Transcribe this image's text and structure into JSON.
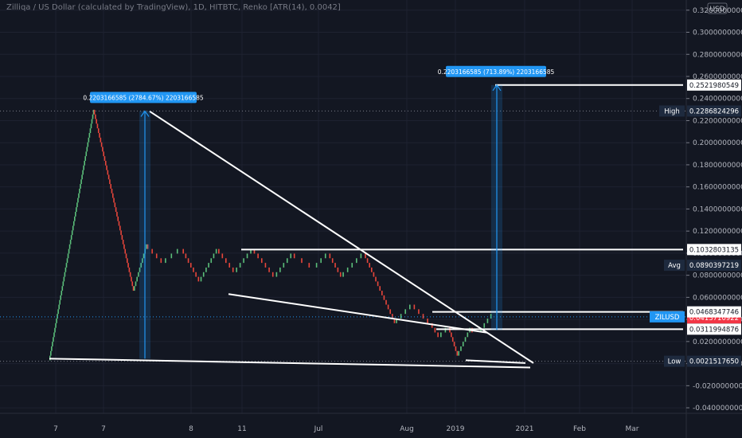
{
  "header": {
    "title": "Zilliqa / US Dollar (calculated by TradingView), 1D, HITBTC, Renko [ATR(14), 0.0042]"
  },
  "currency_badge": "USD",
  "colors": {
    "background": "#131722",
    "grid": "#1e2230",
    "up": "#26a69a",
    "down": "#ef5350",
    "up_brick": "#5bbf7a",
    "down_brick": "#e8463b",
    "trendline": "#ffffff",
    "measure": "#2196f3",
    "tag_dark": "#1e2a3e",
    "tag_blue": "#2196f3",
    "tag_red": "#f23645",
    "axis_text": "#b2b5be"
  },
  "chart_data": {
    "type": "renko",
    "title": "Zilliqa / US Dollar (calculated by TradingView), 1D, HITBTC, Renko [ATR(14), 0.0042]",
    "ylim": [
      -0.045,
      0.322
    ],
    "y_ticks": [
      "0.3200000000",
      "0.3000000000",
      "0.2800000000",
      "0.2600000000",
      "0.2400000000",
      "0.2200000000",
      "0.2000000000",
      "0.1800000000",
      "0.1600000000",
      "0.1400000000",
      "0.1200000000",
      "0.1000000000",
      "0.0800000000",
      "0.0600000000",
      "0.0400000000",
      "0.0200000000",
      "0.0000000000",
      "-0.0200000000",
      "-0.0400000000"
    ],
    "y_tick_values": [
      0.32,
      0.3,
      0.28,
      0.26,
      0.24,
      0.22,
      0.2,
      0.18,
      0.16,
      0.14,
      0.12,
      0.1,
      0.08,
      0.06,
      0.04,
      0.02,
      0.0,
      -0.02,
      -0.04
    ],
    "x_ticks": [
      "7",
      "7",
      "8",
      "11",
      "Jul",
      "Aug",
      "2019",
      "2021",
      "Feb",
      "Mar"
    ],
    "price_path": [
      {
        "x": 0.0,
        "y": 0.003
      },
      {
        "x": 0.1,
        "y": 0.2287
      },
      {
        "x": 0.19,
        "y": 0.063
      },
      {
        "x": 0.22,
        "y": 0.1033
      },
      {
        "x": 0.26,
        "y": 0.085
      },
      {
        "x": 0.3,
        "y": 0.098
      },
      {
        "x": 0.34,
        "y": 0.07
      },
      {
        "x": 0.38,
        "y": 0.098
      },
      {
        "x": 0.42,
        "y": 0.078
      },
      {
        "x": 0.46,
        "y": 0.1
      },
      {
        "x": 0.51,
        "y": 0.073
      },
      {
        "x": 0.55,
        "y": 0.095
      },
      {
        "x": 0.6,
        "y": 0.082
      },
      {
        "x": 0.63,
        "y": 0.094
      },
      {
        "x": 0.66,
        "y": 0.074
      },
      {
        "x": 0.71,
        "y": 0.093
      },
      {
        "x": 0.78,
        "y": 0.03
      },
      {
        "x": 0.82,
        "y": 0.048
      },
      {
        "x": 0.86,
        "y": 0.0312
      },
      {
        "x": 0.88,
        "y": 0.018
      },
      {
        "x": 0.9,
        "y": 0.028
      },
      {
        "x": 0.92,
        "y": 0.0022
      },
      {
        "x": 0.95,
        "y": 0.028
      },
      {
        "x": 0.97,
        "y": 0.025
      },
      {
        "x": 1.0,
        "y": 0.042
      }
    ],
    "levels": [
      {
        "value": 0.2521980549,
        "label": "0.2521980549"
      },
      {
        "value": 0.1032803135,
        "label": "0.1032803135"
      },
      {
        "value": 0.0468347746,
        "label": "0.0468347746"
      },
      {
        "value": 0.0311994876,
        "label": "0.0311994876"
      }
    ],
    "price_tags": [
      {
        "value": 0.2286824296,
        "prefix": "High",
        "label": "0.2286824296",
        "kind": "dark"
      },
      {
        "value": 0.0890397219,
        "prefix": "Avg",
        "label": "0.0890397219",
        "kind": "dark"
      },
      {
        "value": 0.0423485981,
        "prefix": "ZILUSD",
        "label": "0.0423485981",
        "kind": "blue"
      },
      {
        "value": 0.0413710922,
        "prefix": "",
        "label": "0.0413710922",
        "kind": "red"
      },
      {
        "value": 0.002151765,
        "prefix": "Low",
        "label": "0.0021517650",
        "kind": "dark"
      }
    ],
    "measure_labels": [
      "0.2203166585 (2784.67%) 2203166585",
      "0.2203166585 (713.89%) 2203166585"
    ]
  }
}
